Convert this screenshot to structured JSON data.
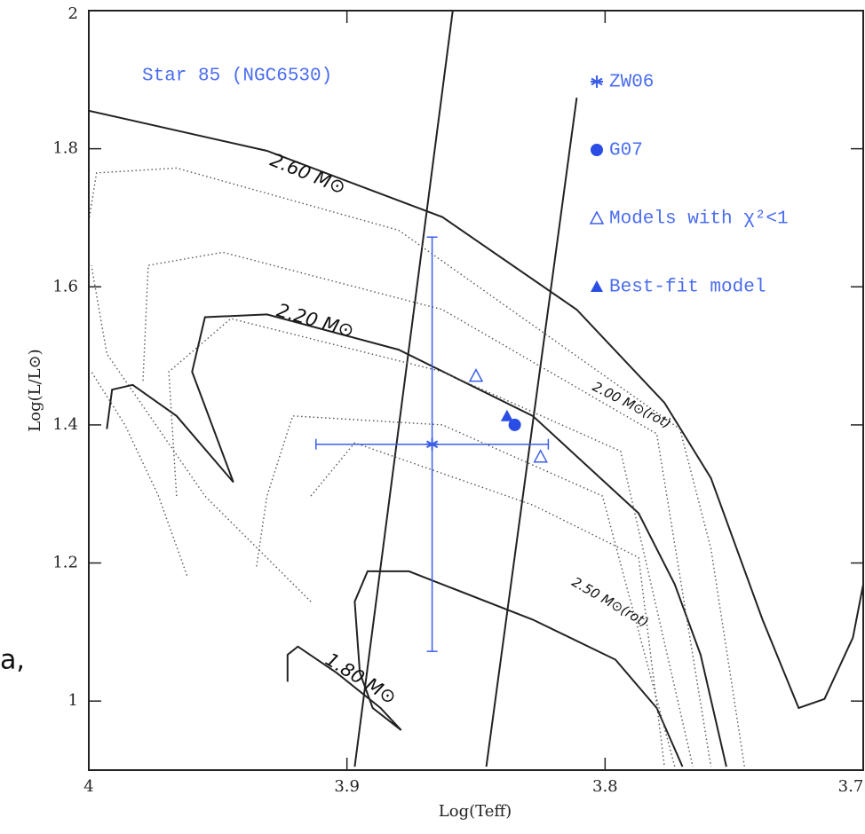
{
  "chart_data": {
    "type": "line",
    "title": "Star 85 (NGC6530)",
    "xlabel": "Log(Teff)",
    "ylabel": "Log(L/L⊙)",
    "side_text": "a,",
    "xlim": [
      4,
      3.7
    ],
    "ylim": [
      0.9,
      2
    ],
    "xticks": [
      4,
      3.9,
      3.8,
      3.7
    ],
    "yticks": [
      1,
      1.2,
      1.4,
      1.6,
      1.8,
      2
    ],
    "tracks": [
      {
        "name": "2.60 M⊙",
        "style": "solid",
        "x": [
          4.0,
          3.931,
          3.863,
          3.811,
          3.777,
          3.759,
          3.739,
          3.725,
          3.715,
          3.704,
          3.7
        ],
        "y": [
          1.855,
          1.797,
          1.701,
          1.567,
          1.432,
          1.323,
          1.118,
          0.99,
          1.003,
          1.092,
          1.169
        ]
      },
      {
        "name": "2.20 M⊙",
        "style": "solid",
        "x": [
          3.944,
          3.96,
          3.955,
          3.931,
          3.88,
          3.828,
          3.787,
          3.773,
          3.763,
          3.753
        ],
        "y": [
          1.317,
          1.477,
          1.556,
          1.56,
          1.509,
          1.413,
          1.272,
          1.169,
          1.067,
          0.905
        ]
      },
      {
        "name": "1.80 M⊙",
        "style": "solid",
        "x": [
          3.923,
          3.923,
          3.919,
          3.904,
          3.887,
          3.879,
          3.89,
          3.895,
          3.897,
          3.892,
          3.876,
          3.828,
          3.796,
          3.78,
          3.77
        ],
        "y": [
          1.028,
          1.067,
          1.079,
          1.041,
          0.99,
          0.958,
          0.99,
          1.041,
          1.144,
          1.188,
          1.188,
          1.118,
          1.06,
          0.99,
          0.905
        ]
      },
      {
        "style": "solid",
        "x": [
          3.897,
          3.859
        ],
        "y": [
          0.905,
          2.0
        ]
      },
      {
        "style": "solid",
        "x": [
          3.846,
          3.811
        ],
        "y": [
          0.905,
          1.874
        ]
      },
      {
        "style": "dotted",
        "x": [
          4.0,
          3.997,
          3.966,
          3.88,
          3.771,
          3.759,
          3.746
        ],
        "y": [
          1.695,
          1.765,
          1.772,
          1.682,
          1.394,
          1.221,
          0.905
        ]
      },
      {
        "name": "2.00 M⊙(rot)",
        "style": "dotted",
        "x": [
          3.979,
          3.977,
          3.948,
          3.863,
          3.78,
          3.759
        ],
        "y": [
          1.464,
          1.631,
          1.65,
          1.567,
          1.387,
          0.905
        ]
      },
      {
        "style": "dotted",
        "x": [
          3.966,
          3.969,
          3.945,
          3.863,
          3.794,
          3.766
        ],
        "y": [
          1.297,
          1.477,
          1.554,
          1.477,
          1.362,
          0.905
        ]
      },
      {
        "style": "dotted",
        "x": [
          3.935,
          3.931,
          3.921,
          3.863,
          3.801,
          3.773
        ],
        "y": [
          1.195,
          1.297,
          1.413,
          1.4,
          1.297,
          0.905
        ]
      },
      {
        "style": "dotted",
        "x": [
          3.914,
          3.955,
          3.993,
          3.999
        ],
        "y": [
          1.144,
          1.297,
          1.503,
          1.631
        ]
      },
      {
        "style": "dotted",
        "x": [
          3.962,
          3.973,
          3.986,
          3.999
        ],
        "y": [
          1.182,
          1.297,
          1.4,
          1.477
        ]
      },
      {
        "name": "2.50 M⊙(rot)",
        "style": "dotted",
        "x": [
          3.914,
          3.897,
          3.828,
          3.787,
          3.777
        ],
        "y": [
          1.297,
          1.374,
          1.284,
          1.208,
          0.905
        ]
      },
      {
        "style": "solid",
        "x": [
          3.993,
          3.991,
          3.983,
          3.966,
          3.944
        ],
        "y": [
          1.394,
          1.451,
          1.458,
          1.413,
          1.317
        ]
      }
    ],
    "series": [
      {
        "name": "ZW06",
        "color": "#3b5ee8",
        "marker": "star",
        "x": [
          3.867
        ],
        "y": [
          1.372
        ],
        "xerr": [
          0.045
        ],
        "yerr": [
          0.3
        ]
      },
      {
        "name": "G07",
        "color": "#2a4de6",
        "marker": "circle",
        "x": [
          3.835
        ],
        "y": [
          1.4
        ]
      },
      {
        "name": "Models with χ²<1",
        "color": "#3b5ee8",
        "marker": "triangle-open",
        "x": [
          3.85,
          3.825
        ],
        "y": [
          1.471,
          1.354
        ]
      },
      {
        "name": "Best-fit model",
        "color": "#2a4de6",
        "marker": "triangle",
        "x": [
          3.838
        ],
        "y": [
          1.413
        ]
      }
    ]
  }
}
